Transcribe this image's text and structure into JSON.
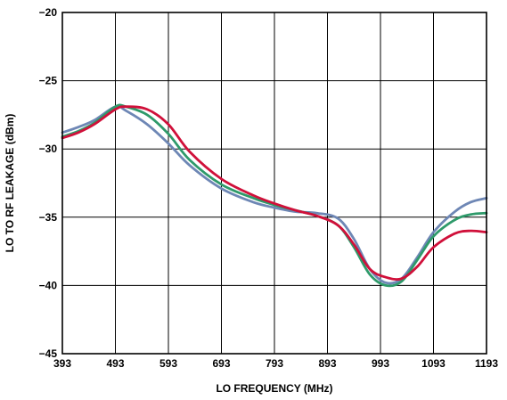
{
  "chart_data": {
    "type": "line",
    "title": "",
    "xlabel": "LO FREQUENCY (MHz)",
    "ylabel": "LO TO RF LEAKAGE (dBm)",
    "xlim": [
      393,
      1193
    ],
    "ylim": [
      -45,
      -20
    ],
    "xticks": [
      393,
      493,
      593,
      693,
      793,
      893,
      993,
      1093,
      1193
    ],
    "yticks": [
      -20,
      -25,
      -30,
      -35,
      -40,
      -45
    ],
    "grid": true,
    "series": [
      {
        "color": "#6e87b5",
        "x": [
          393,
          423,
          453,
          493,
          513,
          553,
          593,
          633,
          693,
          753,
          793,
          833,
          873,
          913,
          943,
          973,
          1003,
          1033,
          1063,
          1093,
          1133,
          1163,
          1193
        ],
        "y": [
          -28.8,
          -28.4,
          -27.9,
          -26.9,
          -27.2,
          -28.2,
          -29.6,
          -31.2,
          -32.9,
          -33.9,
          -34.3,
          -34.6,
          -34.7,
          -35.1,
          -36.6,
          -38.8,
          -39.8,
          -39.5,
          -37.9,
          -36.1,
          -34.6,
          -33.9,
          -33.6
        ]
      },
      {
        "color": "#2e9a6a",
        "x": [
          393,
          423,
          453,
          493,
          513,
          553,
          593,
          633,
          693,
          753,
          793,
          833,
          873,
          913,
          943,
          973,
          1003,
          1033,
          1063,
          1093,
          1133,
          1163,
          1193
        ],
        "y": [
          -29.1,
          -28.7,
          -28.1,
          -26.9,
          -26.9,
          -27.5,
          -28.9,
          -30.8,
          -32.6,
          -33.6,
          -34.1,
          -34.5,
          -34.9,
          -35.6,
          -37.2,
          -39.2,
          -40.0,
          -39.7,
          -38.1,
          -36.4,
          -35.2,
          -34.8,
          -34.7
        ]
      },
      {
        "color": "#d0103a",
        "x": [
          393,
          423,
          453,
          493,
          513,
          553,
          593,
          633,
          693,
          753,
          793,
          833,
          873,
          913,
          943,
          973,
          1003,
          1033,
          1063,
          1093,
          1133,
          1163,
          1193
        ],
        "y": [
          -29.2,
          -28.8,
          -28.2,
          -27.1,
          -26.9,
          -27.1,
          -28.2,
          -30.2,
          -32.2,
          -33.4,
          -34.0,
          -34.5,
          -34.9,
          -35.6,
          -37.0,
          -38.8,
          -39.4,
          -39.5,
          -38.6,
          -37.2,
          -36.2,
          -36.0,
          -36.1
        ]
      }
    ]
  }
}
